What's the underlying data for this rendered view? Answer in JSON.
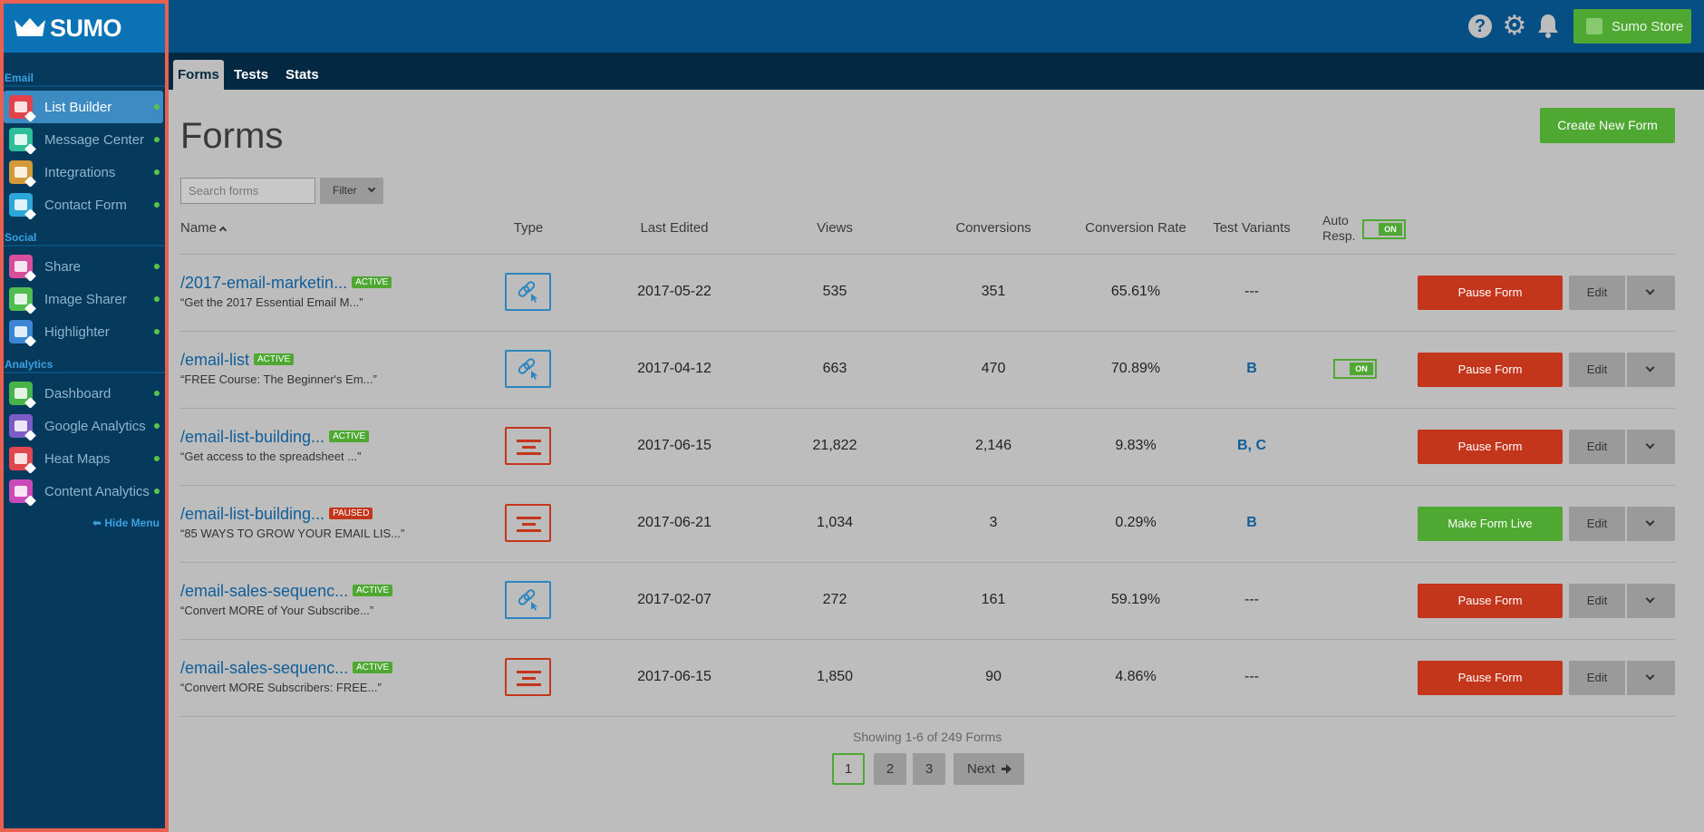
{
  "app": {
    "logo": "SUMO"
  },
  "sidebar": {
    "sections": [
      {
        "label": "Email",
        "items": [
          {
            "label": "List Builder",
            "icon": "list-builder-icon",
            "color": "#e2434b",
            "active": true
          },
          {
            "label": "Message Center",
            "icon": "message-center-icon",
            "color": "#2ebf9a"
          },
          {
            "label": "Integrations",
            "icon": "integrations-icon",
            "color": "#d49a3a"
          },
          {
            "label": "Contact Form",
            "icon": "contact-form-icon",
            "color": "#2aa8d8"
          }
        ]
      },
      {
        "label": "Social",
        "items": [
          {
            "label": "Share",
            "icon": "share-icon",
            "color": "#d84d9c"
          },
          {
            "label": "Image Sharer",
            "icon": "image-sharer-icon",
            "color": "#4fbd4f"
          },
          {
            "label": "Highlighter",
            "icon": "highlighter-icon",
            "color": "#3b86d4"
          }
        ]
      },
      {
        "label": "Analytics",
        "items": [
          {
            "label": "Dashboard",
            "icon": "dashboard-icon",
            "color": "#47b44a"
          },
          {
            "label": "Google Analytics",
            "icon": "google-analytics-icon",
            "color": "#7c5cc9"
          },
          {
            "label": "Heat Maps",
            "icon": "heat-maps-icon",
            "color": "#e0474f"
          },
          {
            "label": "Content Analytics",
            "icon": "content-analytics-icon",
            "color": "#c94ab8"
          }
        ]
      }
    ],
    "hide_menu": "Hide Menu"
  },
  "topbar": {
    "store_label": "Sumo Store",
    "help": "?"
  },
  "tabs": [
    {
      "label": "Forms",
      "active": true
    },
    {
      "label": "Tests"
    },
    {
      "label": "Stats"
    }
  ],
  "main": {
    "title": "Forms",
    "create_label": "Create New Form",
    "search_placeholder": "Search forms",
    "filter_label": "Filter"
  },
  "table": {
    "headers": {
      "name": "Name",
      "type": "Type",
      "last_edited": "Last Edited",
      "views": "Views",
      "conversions": "Conversions",
      "conversion_rate": "Conversion Rate",
      "test_variants": "Test Variants",
      "auto_resp_1": "Auto",
      "auto_resp_2": "Resp.",
      "toggle_label": "ON"
    },
    "rows": [
      {
        "name": "/2017-email-marketin...",
        "status": "ACTIVE",
        "subtitle": "“Get the 2017 Essential Email M...”",
        "type": "link",
        "last_edited": "2017-05-22",
        "views": "535",
        "conversions": "351",
        "rate": "65.61%",
        "variants": "---",
        "auto_resp": false,
        "action": "Pause Form",
        "edit": "Edit"
      },
      {
        "name": "/email-list",
        "status": "ACTIVE",
        "subtitle": "“FREE Course: The Beginner's Em...”",
        "type": "link",
        "last_edited": "2017-04-12",
        "views": "663",
        "conversions": "470",
        "rate": "70.89%",
        "variants": "B",
        "auto_resp": true,
        "action": "Pause Form",
        "edit": "Edit"
      },
      {
        "name": "/email-list-building...",
        "status": "ACTIVE",
        "subtitle": "“Get access to the spreadsheet ...”",
        "type": "bar",
        "last_edited": "2017-06-15",
        "views": "21,822",
        "conversions": "2,146",
        "rate": "9.83%",
        "variants": "B, C",
        "auto_resp": false,
        "action": "Pause Form",
        "edit": "Edit"
      },
      {
        "name": "/email-list-building...",
        "status": "PAUSED",
        "subtitle": "“85 WAYS TO GROW YOUR EMAIL LIS...”",
        "type": "bar",
        "last_edited": "2017-06-21",
        "views": "1,034",
        "conversions": "3",
        "rate": "0.29%",
        "variants": "B",
        "auto_resp": false,
        "action": "Make Form Live",
        "edit": "Edit"
      },
      {
        "name": "/email-sales-sequenc...",
        "status": "ACTIVE",
        "subtitle": "“Convert MORE of Your Subscribe...”",
        "type": "link",
        "last_edited": "2017-02-07",
        "views": "272",
        "conversions": "161",
        "rate": "59.19%",
        "variants": "---",
        "auto_resp": false,
        "action": "Pause Form",
        "edit": "Edit"
      },
      {
        "name": "/email-sales-sequenc...",
        "status": "ACTIVE",
        "subtitle": "“Convert MORE Subscribers: FREE...”",
        "type": "bar",
        "last_edited": "2017-06-15",
        "views": "1,850",
        "conversions": "90",
        "rate": "4.86%",
        "variants": "---",
        "auto_resp": false,
        "action": "Pause Form",
        "edit": "Edit"
      }
    ]
  },
  "pagination": {
    "showing": "Showing 1-6 of 249 Forms",
    "pages": [
      "1",
      "2",
      "3"
    ],
    "current": "1",
    "next": "Next"
  },
  "colors": {
    "accent_green": "#4ea832",
    "danger_red": "#c4361c",
    "link_blue": "#0f5e99",
    "sidebar_bg": "#063a5c",
    "topbar_bg": "#064f85"
  }
}
